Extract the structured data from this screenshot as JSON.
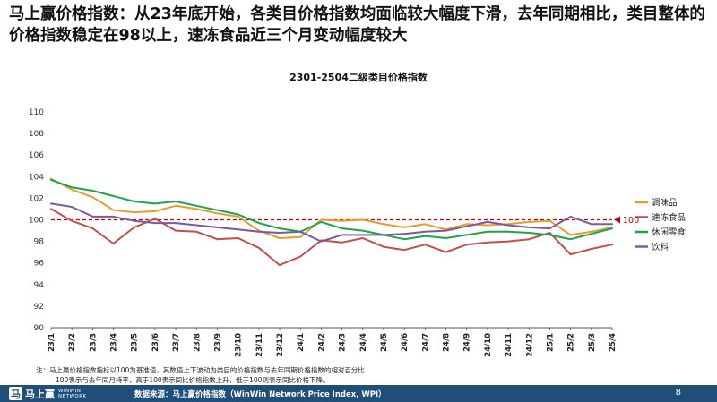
{
  "headline": "马上赢价格指数：从23年底开始，各类目价格指数均面临较大幅度下滑，去年同期相比，类目整体的价格指数稳定在98以上，速冻食品近三个月变动幅度较大",
  "note_line1": "注：马上赢价格指数指标以100为基准值，其数值上下波动为类目的价格指数与去年同期价格指数的相对百分比",
  "note_line2": "100表示与去年同月持平，高于100表示同比价格指数上升，低于100则表示同比价格下降。",
  "footer": {
    "logo_cn": "马上赢",
    "logo_en_1": "WINWIN",
    "logo_en_2": "NETWORK",
    "source": "数据来源：马上赢价格指数（WinWin Network Price Index, WPI）",
    "page": "8"
  },
  "colors": {
    "footer_bg": "#1f4e79",
    "baseline": "#c00000"
  },
  "chart_data": {
    "type": "line",
    "title": "2301-2504二级类目价格指数",
    "x": [
      "23/1",
      "23/2",
      "23/3",
      "23/4",
      "23/5",
      "23/6",
      "23/7",
      "23/8",
      "23/9",
      "23/10",
      "23/11",
      "23/12",
      "24/1",
      "24/2",
      "24/3",
      "24/4",
      "24/5",
      "24/6",
      "24/7",
      "24/8",
      "24/9",
      "24/10",
      "24/11",
      "24/12",
      "25/1",
      "25/2",
      "25/3",
      "25/4"
    ],
    "yticks": [
      90,
      92,
      94,
      96,
      98,
      100,
      102,
      104,
      106,
      108,
      110
    ],
    "ylim": [
      90,
      110
    ],
    "grid": false,
    "legend_position": "right",
    "baseline": {
      "value": 100,
      "label": "100"
    },
    "series": [
      {
        "name": "调味品",
        "color": "#e39d32",
        "values": [
          103.8,
          102.8,
          102.1,
          100.9,
          100.7,
          100.8,
          101.3,
          101.0,
          100.6,
          100.3,
          99.0,
          98.3,
          98.4,
          100.0,
          99.9,
          100.0,
          99.6,
          99.3,
          99.6,
          99.1,
          99.6,
          99.5,
          99.6,
          99.8,
          99.9,
          98.6,
          98.9,
          99.3
        ]
      },
      {
        "name": "速冻食品",
        "color": "#c0504d",
        "values": [
          101.0,
          99.9,
          99.2,
          97.8,
          99.3,
          100.1,
          99.0,
          98.9,
          98.2,
          98.3,
          97.4,
          95.8,
          96.6,
          98.1,
          97.9,
          98.3,
          97.5,
          97.2,
          97.7,
          97.0,
          97.7,
          97.9,
          98.0,
          98.2,
          98.8,
          96.8,
          97.3,
          97.7
        ]
      },
      {
        "name": "休闲零食",
        "color": "#1fa34a",
        "values": [
          103.7,
          103.0,
          102.7,
          102.2,
          101.7,
          101.5,
          101.7,
          101.3,
          100.9,
          100.5,
          99.7,
          99.2,
          98.9,
          99.8,
          99.2,
          99.0,
          98.6,
          98.2,
          98.5,
          98.3,
          98.6,
          98.9,
          98.9,
          98.8,
          98.6,
          98.2,
          98.7,
          99.2
        ]
      },
      {
        "name": "饮料",
        "color": "#7b5a9b",
        "values": [
          101.5,
          101.2,
          100.3,
          100.3,
          99.9,
          99.7,
          99.7,
          99.5,
          99.3,
          99.1,
          98.9,
          98.8,
          98.9,
          98.0,
          98.6,
          98.6,
          98.6,
          98.7,
          98.9,
          99.0,
          99.4,
          99.8,
          99.5,
          99.3,
          99.2,
          100.3,
          99.6,
          99.6
        ]
      }
    ]
  }
}
